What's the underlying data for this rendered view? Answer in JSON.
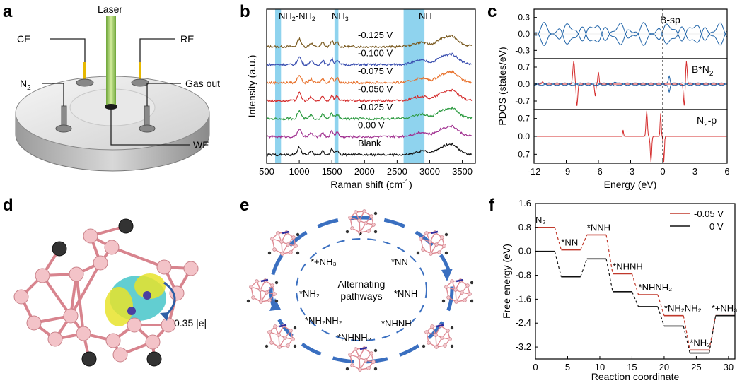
{
  "panels": {
    "a": {
      "label": "a",
      "callouts": {
        "laser": "Laser",
        "ce": "CE",
        "re": "RE",
        "n2": "N",
        "n2_sub": "2",
        "gas_out": "Gas out",
        "we": "WE"
      }
    },
    "b": {
      "label": "b",
      "chart_data": {
        "type": "line",
        "xlabel_main": "Raman shift (cm",
        "xlabel_sup": "-1",
        "xlabel_end": ")",
        "ylabel": "Intensity (a.u.)",
        "xlim": [
          500,
          3700
        ],
        "xticks": [
          "500",
          "1000",
          "1500",
          "2000",
          "2500",
          "3000",
          "3500"
        ],
        "xtick_values": [
          500,
          1000,
          1500,
          2000,
          2500,
          3000,
          3500
        ],
        "bands": [
          {
            "name": "NH2-NH2",
            "x": [
              630,
              720
            ]
          },
          {
            "name": "NH3",
            "x": [
              1540,
              1600
            ]
          },
          {
            "name": "NH",
            "x": [
              2600,
              2920
            ]
          }
        ],
        "band_labels": {
          "nh2nh2_a": "NH",
          "nh2nh2_sub1": "2",
          "nh2nh2_b": "-NH",
          "nh2nh2_sub2": "2",
          "nh3_a": "NH",
          "nh3_sub": "3",
          "nh": "NH"
        },
        "series": [
          {
            "name": "-0.125 V",
            "color": "#7a5a20",
            "offset": 6
          },
          {
            "name": "-0.100 V",
            "color": "#3a4fb0",
            "offset": 5
          },
          {
            "name": "-0.075 V",
            "color": "#e8702a",
            "offset": 4
          },
          {
            "name": "-0.050 V",
            "color": "#d42c2c",
            "offset": 3
          },
          {
            "name": "-0.025 V",
            "color": "#2c9a40",
            "offset": 2
          },
          {
            "name": "0.00  V",
            "color": "#a03090",
            "offset": 1
          },
          {
            "name": "Blank",
            "color": "#111111",
            "offset": 0
          }
        ]
      }
    },
    "c": {
      "label": "c",
      "chart_data": {
        "type": "line",
        "xlabel": "Energy (eV)",
        "ylabel": "PDOS (states/eV)",
        "xlim": [
          -12,
          6
        ],
        "xticks": [
          "-12",
          "-9",
          "-6",
          "-3",
          "0",
          "3",
          "6"
        ],
        "xtick_values": [
          -12,
          -9,
          -6,
          -3,
          0,
          3,
          6
        ],
        "subplots": [
          {
            "legend": "B-sp",
            "yticks": [
              "0.3",
              "0.0",
              "-0.3"
            ],
            "ytick_values": [
              0.3,
              0.0,
              -0.3
            ],
            "ylim": [
              -0.45,
              0.45
            ],
            "colors": [
              "#1f63a8"
            ]
          },
          {
            "legend_a": "B*N",
            "legend_sub": "2",
            "yticks": [
              "0.7",
              "0.0",
              "-0.7"
            ],
            "ytick_values": [
              0.7,
              0.0,
              -0.7
            ],
            "ylim": [
              -1.05,
              1.05
            ],
            "colors": [
              "#d42c2c",
              "#1f63a8"
            ]
          },
          {
            "legend_a": "N",
            "legend_sub": "2",
            "legend_b": "-p",
            "yticks": [
              "0.7",
              "0.0",
              "-0.7"
            ],
            "ytick_values": [
              0.7,
              0.0,
              -0.7
            ],
            "ylim": [
              -1.05,
              1.05
            ],
            "colors": [
              "#d42c2c"
            ]
          }
        ]
      }
    },
    "d": {
      "label": "d",
      "charge": "0.35 |e|"
    },
    "e": {
      "label": "e",
      "center_line1": "Alternating",
      "center_line2": "pathways",
      "species": [
        "*",
        "*NN",
        "*NNH",
        "*NHNH",
        "*NHNH₂",
        "*NH₂NH₂",
        "*NH₂",
        "*+NH₃"
      ]
    },
    "f": {
      "label": "f",
      "chart_data": {
        "type": "line",
        "xlabel": "Reaction coordinate",
        "ylabel": "Free energy (eV)",
        "xlim": [
          0,
          31
        ],
        "ylim": [
          -3.6,
          1.6
        ],
        "xticks": [
          "0",
          "5",
          "10",
          "15",
          "20",
          "25",
          "30"
        ],
        "xtick_values": [
          0,
          5,
          10,
          15,
          20,
          25,
          30
        ],
        "yticks": [
          "1.6",
          "0.8",
          "0.0",
          "-0.8",
          "-1.6",
          "-2.4",
          "-3.2"
        ],
        "ytick_values": [
          1.6,
          0.8,
          0.0,
          -0.8,
          -1.6,
          -2.4,
          -3.2
        ],
        "legend": "top-right",
        "levels_x": [
          [
            0,
            3
          ],
          [
            4,
            7
          ],
          [
            8,
            11
          ],
          [
            12,
            15
          ],
          [
            16,
            19
          ],
          [
            20,
            23
          ],
          [
            24,
            27
          ],
          [
            28,
            31
          ]
        ],
        "step_labels": [
          "N₂",
          "*NN",
          "*NNH",
          "*NHNH",
          "*NHNH₂",
          "*NH₂NH₂",
          "*NH₂",
          "*+NH₃"
        ],
        "series": [
          {
            "name": "-0.05 V",
            "color": "#c0392b",
            "values": [
              0.8,
              0.05,
              0.55,
              -0.75,
              -1.45,
              -2.15,
              -3.3,
              -2.15
            ]
          },
          {
            "name": "0 V",
            "color": "#111111",
            "values": [
              0.0,
              -0.85,
              -0.25,
              -1.35,
              -1.85,
              -2.5,
              -3.4,
              -2.15
            ]
          }
        ]
      }
    }
  }
}
